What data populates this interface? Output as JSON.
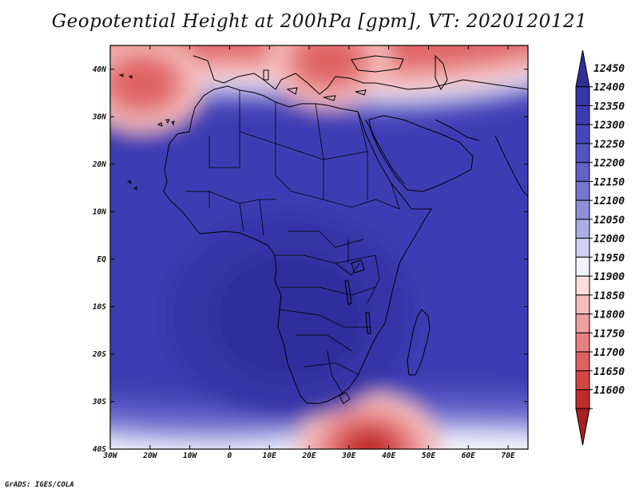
{
  "title": "Geopotential Height at 200hPa [gpm], VT: 2020120121",
  "footer": "GrADS: IGES/COLA",
  "map": {
    "variable": "Geopotential Height",
    "level": "200hPa",
    "units": "gpm",
    "valid_time": "2020120121",
    "lon_range": [
      -30,
      75
    ],
    "lat_range": [
      -40,
      45
    ],
    "x_ticks": [
      {
        "value": -30,
        "label": "30W"
      },
      {
        "value": -20,
        "label": "20W"
      },
      {
        "value": -10,
        "label": "10W"
      },
      {
        "value": 0,
        "label": "0"
      },
      {
        "value": 10,
        "label": "10E"
      },
      {
        "value": 20,
        "label": "20E"
      },
      {
        "value": 30,
        "label": "30E"
      },
      {
        "value": 40,
        "label": "40E"
      },
      {
        "value": 50,
        "label": "50E"
      },
      {
        "value": 60,
        "label": "60E"
      },
      {
        "value": 70,
        "label": "70E"
      }
    ],
    "y_ticks": [
      {
        "value": 40,
        "label": "40N"
      },
      {
        "value": 30,
        "label": "30N"
      },
      {
        "value": 20,
        "label": "20N"
      },
      {
        "value": 10,
        "label": "10N"
      },
      {
        "value": 0,
        "label": "EQ"
      },
      {
        "value": -10,
        "label": "10S"
      },
      {
        "value": -20,
        "label": "20S"
      },
      {
        "value": -30,
        "label": "30S"
      },
      {
        "value": -40,
        "label": "40S"
      }
    ],
    "features": [
      {
        "name": "Mediterranean trough",
        "lon": 25,
        "lat": 42,
        "level": "low"
      },
      {
        "name": "North Atlantic low",
        "lon": -22,
        "lat": 37,
        "level": "low"
      },
      {
        "name": "Southern low",
        "lon": 35,
        "lat": -40,
        "level": "low"
      },
      {
        "name": "Central African high",
        "lon": 15,
        "lat": -12,
        "level": "high"
      }
    ]
  },
  "colorbar": {
    "levels": [
      "12450",
      "12400",
      "12350",
      "12300",
      "12250",
      "12200",
      "12150",
      "12100",
      "12050",
      "12000",
      "11950",
      "11900",
      "11850",
      "11800",
      "11750",
      "11700",
      "11650",
      "11600"
    ],
    "colors": [
      "#2f2f9c",
      "#3636a8",
      "#3d3db3",
      "#4646bb",
      "#5353c2",
      "#6262c9",
      "#7676d1",
      "#8f8fda",
      "#adade6",
      "#cfcff1",
      "#f2f2fb",
      "#fbdddd",
      "#f5bdbd",
      "#eea0a0",
      "#e78080",
      "#df6262",
      "#d44646",
      "#bf2c2c",
      "#a81f1f"
    ]
  }
}
